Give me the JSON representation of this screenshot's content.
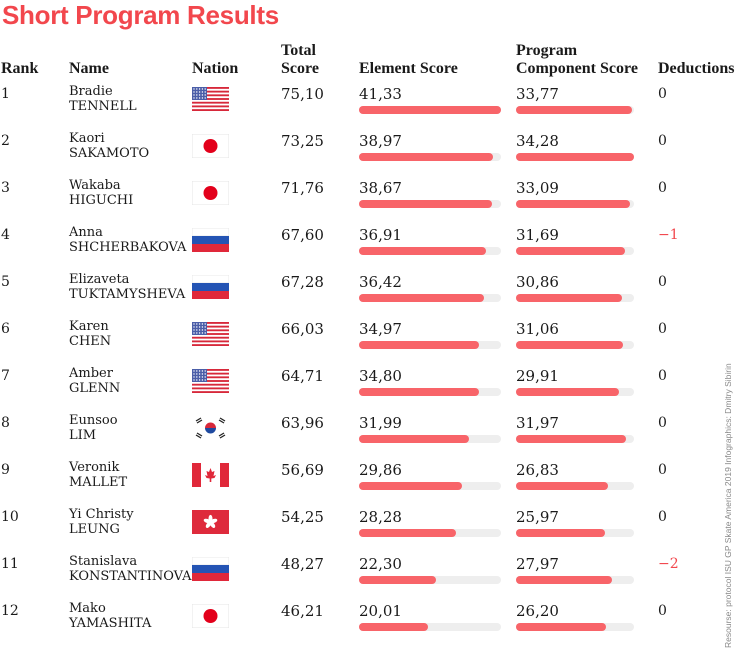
{
  "title": "Short Program Results",
  "headers": {
    "rank": "Rank",
    "name": "Name",
    "nation": "Nation",
    "total_1": "Total",
    "total_2": "Score",
    "element": "Element Score",
    "pcs_1": "Program",
    "pcs_2": "Component Score",
    "deductions": "Deductions"
  },
  "credit": "Resourse: protocol ISU GP Skate America 2019 Infographics: Dmitry Sibirin",
  "colors": {
    "title": "#f2474d",
    "bar": "#f86469",
    "track": "#eeeeee",
    "negative": "#f2474d"
  },
  "chart_data": {
    "type": "table",
    "title": "Short Program Results",
    "columns": [
      "Rank",
      "Name",
      "Nation",
      "Total Score",
      "Element Score",
      "Program Component Score",
      "Deductions"
    ],
    "element_scale_max": 41.33,
    "pcs_scale_max": 34.28,
    "rows": [
      {
        "rank": "1",
        "first": "Bradie",
        "last": "TENNELL",
        "nation": "us-flag-icon",
        "total": "75,10",
        "element": "41,33",
        "element_value": 41.33,
        "pcs": "33,77",
        "pcs_value": 33.77,
        "ded": "0"
      },
      {
        "rank": "2",
        "first": "Kaori",
        "last": "SAKAMOTO",
        "nation": "jp-flag-icon",
        "total": "73,25",
        "element": "38,97",
        "element_value": 38.97,
        "pcs": "34,28",
        "pcs_value": 34.28,
        "ded": "0"
      },
      {
        "rank": "3",
        "first": "Wakaba",
        "last": "HIGUCHI",
        "nation": "jp-flag-icon",
        "total": "71,76",
        "element": "38,67",
        "element_value": 38.67,
        "pcs": "33,09",
        "pcs_value": 33.09,
        "ded": "0"
      },
      {
        "rank": "4",
        "first": "Anna",
        "last": "SHCHERBAKOVA",
        "nation": "ru-flag-icon",
        "total": "67,60",
        "element": "36,91",
        "element_value": 36.91,
        "pcs": "31,69",
        "pcs_value": 31.69,
        "ded": "−1"
      },
      {
        "rank": "5",
        "first": "Elizaveta",
        "last": "TUKTAMYSHEVA",
        "nation": "ru-flag-icon",
        "total": "67,28",
        "element": "36,42",
        "element_value": 36.42,
        "pcs": "30,86",
        "pcs_value": 30.86,
        "ded": "0"
      },
      {
        "rank": "6",
        "first": "Karen",
        "last": "CHEN",
        "nation": "us-flag-icon",
        "total": "66,03",
        "element": "34,97",
        "element_value": 34.97,
        "pcs": "31,06",
        "pcs_value": 31.06,
        "ded": "0"
      },
      {
        "rank": "7",
        "first": "Amber",
        "last": "GLENN",
        "nation": "us-flag-icon",
        "total": "64,71",
        "element": "34,80",
        "element_value": 34.8,
        "pcs": "29,91",
        "pcs_value": 29.91,
        "ded": "0"
      },
      {
        "rank": "8",
        "first": "Eunsoo",
        "last": "LIM",
        "nation": "kr-flag-icon",
        "total": "63,96",
        "element": "31,99",
        "element_value": 31.99,
        "pcs": "31,97",
        "pcs_value": 31.97,
        "ded": "0"
      },
      {
        "rank": "9",
        "first": "Veronik",
        "last": "MALLET",
        "nation": "ca-flag-icon",
        "total": "56,69",
        "element": "29,86",
        "element_value": 29.86,
        "pcs": "26,83",
        "pcs_value": 26.83,
        "ded": "0"
      },
      {
        "rank": "10",
        "first": "Yi Christy",
        "last": "LEUNG",
        "nation": "hk-flag-icon",
        "total": "54,25",
        "element": "28,28",
        "element_value": 28.28,
        "pcs": "25,97",
        "pcs_value": 25.97,
        "ded": "0"
      },
      {
        "rank": "11",
        "first": "Stanislava",
        "last": "KONSTANTINOVA",
        "nation": "ru-flag-icon",
        "total": "48,27",
        "element": "22,30",
        "element_value": 22.3,
        "pcs": "27,97",
        "pcs_value": 27.97,
        "ded": "−2"
      },
      {
        "rank": "12",
        "first": "Mako",
        "last": "YAMASHITA",
        "nation": "jp-flag-icon",
        "total": "46,21",
        "element": "20,01",
        "element_value": 20.01,
        "pcs": "26,20",
        "pcs_value": 26.2,
        "ded": "0"
      }
    ]
  }
}
